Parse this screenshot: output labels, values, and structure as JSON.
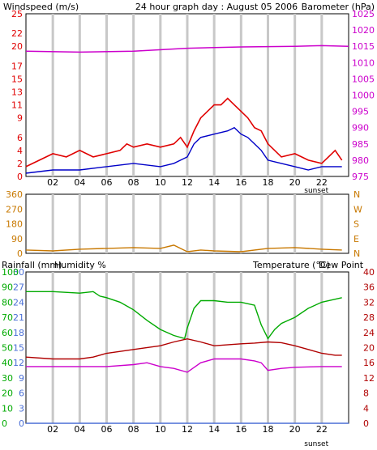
{
  "colors": {
    "wind": "#e00000",
    "wind_avg": "#0000c8",
    "barometer": "#cc00cc",
    "direction": "#c87800",
    "rain": "#4a6fd6",
    "humidity": "#00aa00",
    "temperature": "#b00000",
    "dewpoint": "#cc00cc",
    "grid": "#c8c8c8",
    "frame": "#000000"
  },
  "header": {
    "left_label": "Windspeed (m/s)",
    "title": "24 hour graph day : August 05 2006",
    "right_label": "Barometer (hPa)"
  },
  "panel3": {
    "rain_label": "Rainfall (mm)",
    "humidity_label": "Humidity %",
    "temp_label": "Temperature (°C)",
    "dew_label": "Dew Point"
  },
  "sunset_label": "sunset",
  "chart_data": [
    {
      "type": "line",
      "title": "24 hour graph day : August 05 2006",
      "x_ticks": [
        "02",
        "04",
        "06",
        "08",
        "10",
        "12",
        "14",
        "16",
        "18",
        "20",
        "22"
      ],
      "left_axis": {
        "label": "Windspeed (m/s)",
        "ticks": [
          0,
          2,
          4,
          6,
          9,
          11,
          13,
          15,
          17,
          20,
          22,
          25
        ],
        "ylim": [
          0,
          25
        ]
      },
      "right_axis": {
        "label": "Barometer (hPa)",
        "ticks": [
          975,
          980,
          985,
          990,
          995,
          1000,
          1005,
          1010,
          1015,
          1020,
          1025
        ],
        "ylim": [
          975,
          1025
        ]
      },
      "series": [
        {
          "name": "gust",
          "x": [
            0,
            1,
            2,
            3,
            4,
            5,
            6,
            7,
            7.5,
            8,
            9,
            10,
            11,
            11.5,
            12,
            12.5,
            13,
            13.5,
            14,
            14.5,
            15,
            15.5,
            16,
            16.5,
            17,
            17.5,
            18,
            19,
            20,
            21,
            22,
            22.5,
            23,
            23.5
          ],
          "values": [
            1.5,
            2.5,
            3.5,
            3,
            4,
            3,
            3.5,
            4,
            5,
            4.5,
            5,
            4.5,
            5,
            6,
            4.5,
            7,
            9,
            10,
            11,
            11,
            12,
            11,
            10,
            9,
            7.5,
            7,
            5,
            3,
            3.5,
            2.5,
            2,
            3,
            4,
            2.5
          ]
        },
        {
          "name": "average",
          "x": [
            0,
            2,
            4,
            6,
            8,
            10,
            11,
            11.5,
            12,
            12.5,
            13,
            14,
            15,
            15.5,
            16,
            16.5,
            17,
            17.5,
            18,
            19,
            20,
            21,
            22,
            23,
            23.5
          ],
          "values": [
            0.5,
            1,
            1,
            1.5,
            2,
            1.5,
            2,
            2.5,
            3,
            5,
            6,
            6.5,
            7,
            7.5,
            6.5,
            6,
            5,
            4,
            2.5,
            2,
            1.5,
            1,
            1.5,
            1.5,
            1.5
          ]
        },
        {
          "name": "barometer",
          "x": [
            0,
            4,
            8,
            12,
            16,
            20,
            22,
            24
          ],
          "values": [
            1013.5,
            1013.2,
            1013.5,
            1014.4,
            1014.8,
            1015,
            1015.2,
            1015
          ]
        }
      ]
    },
    {
      "type": "line",
      "x_ticks": [
        "02",
        "04",
        "06",
        "08",
        "10",
        "12",
        "14",
        "16",
        "18",
        "20",
        "22"
      ],
      "left_axis": {
        "ticks": [
          0,
          90,
          180,
          270,
          360
        ],
        "ylim": [
          0,
          360
        ]
      },
      "right_axis": {
        "ticks": [
          "N",
          "E",
          "S",
          "W",
          "N"
        ]
      },
      "series": [
        {
          "name": "wind direction",
          "x": [
            0,
            2,
            4,
            6,
            8,
            10,
            11,
            12,
            13,
            14,
            16,
            18,
            20,
            22,
            23.5
          ],
          "values": [
            20,
            15,
            25,
            30,
            35,
            30,
            50,
            10,
            20,
            15,
            10,
            30,
            35,
            25,
            20
          ]
        }
      ]
    },
    {
      "type": "line",
      "x_ticks": [
        "02",
        "04",
        "06",
        "08",
        "10",
        "12",
        "14",
        "16",
        "18",
        "20",
        "22"
      ],
      "axes": [
        {
          "label": "Rainfall (mm)",
          "ticks": [
            0,
            3,
            6,
            9,
            12,
            15,
            18,
            21,
            24,
            27,
            30
          ],
          "ylim": [
            0,
            30
          ]
        },
        {
          "label": "Humidity %",
          "ticks": [
            0,
            10,
            20,
            30,
            40,
            50,
            60,
            70,
            80,
            90,
            100
          ],
          "ylim": [
            0,
            100
          ]
        },
        {
          "label": "Temperature (°C)",
          "ticks": [
            0,
            4,
            8,
            12,
            16,
            20,
            24,
            28,
            32,
            36,
            40
          ],
          "ylim": [
            0,
            40
          ]
        }
      ],
      "series": [
        {
          "name": "humidity",
          "x": [
            0,
            2,
            4,
            5,
            5.5,
            6,
            7,
            8,
            9,
            10,
            11,
            11.8,
            12,
            12.5,
            13,
            14,
            15,
            16,
            17,
            17.5,
            18,
            18.5,
            19,
            20,
            21,
            22,
            23,
            23.5
          ],
          "values": [
            87,
            87,
            86,
            87,
            84,
            83,
            80,
            75,
            68,
            62,
            58,
            56,
            63,
            76,
            81,
            81,
            80,
            80,
            78,
            65,
            56,
            62,
            66,
            70,
            76,
            80,
            82,
            83
          ]
        },
        {
          "name": "temperature",
          "x": [
            0,
            2,
            4,
            5,
            6,
            8,
            10,
            11,
            12,
            13,
            14,
            16,
            17,
            18,
            19,
            20,
            21,
            22,
            23,
            23.5
          ],
          "values": [
            17.5,
            17,
            17,
            17.5,
            18.5,
            19.5,
            20.5,
            21.5,
            22.3,
            21.5,
            20.5,
            21,
            21.2,
            21.5,
            21.3,
            20.5,
            19.5,
            18.5,
            18,
            18
          ]
        },
        {
          "name": "dew point",
          "x": [
            0,
            2,
            4,
            6,
            8,
            9,
            10,
            11,
            12,
            13,
            14,
            16,
            17,
            17.5,
            18,
            19,
            20,
            22,
            23.5
          ],
          "values": [
            15,
            15,
            15,
            15,
            15.5,
            16,
            15,
            14.5,
            13.5,
            16,
            17,
            17,
            16.5,
            16,
            14,
            14.5,
            14.8,
            15,
            15
          ]
        },
        {
          "name": "rainfall",
          "x": [
            0,
            24
          ],
          "values": [
            0,
            0
          ]
        }
      ]
    }
  ]
}
